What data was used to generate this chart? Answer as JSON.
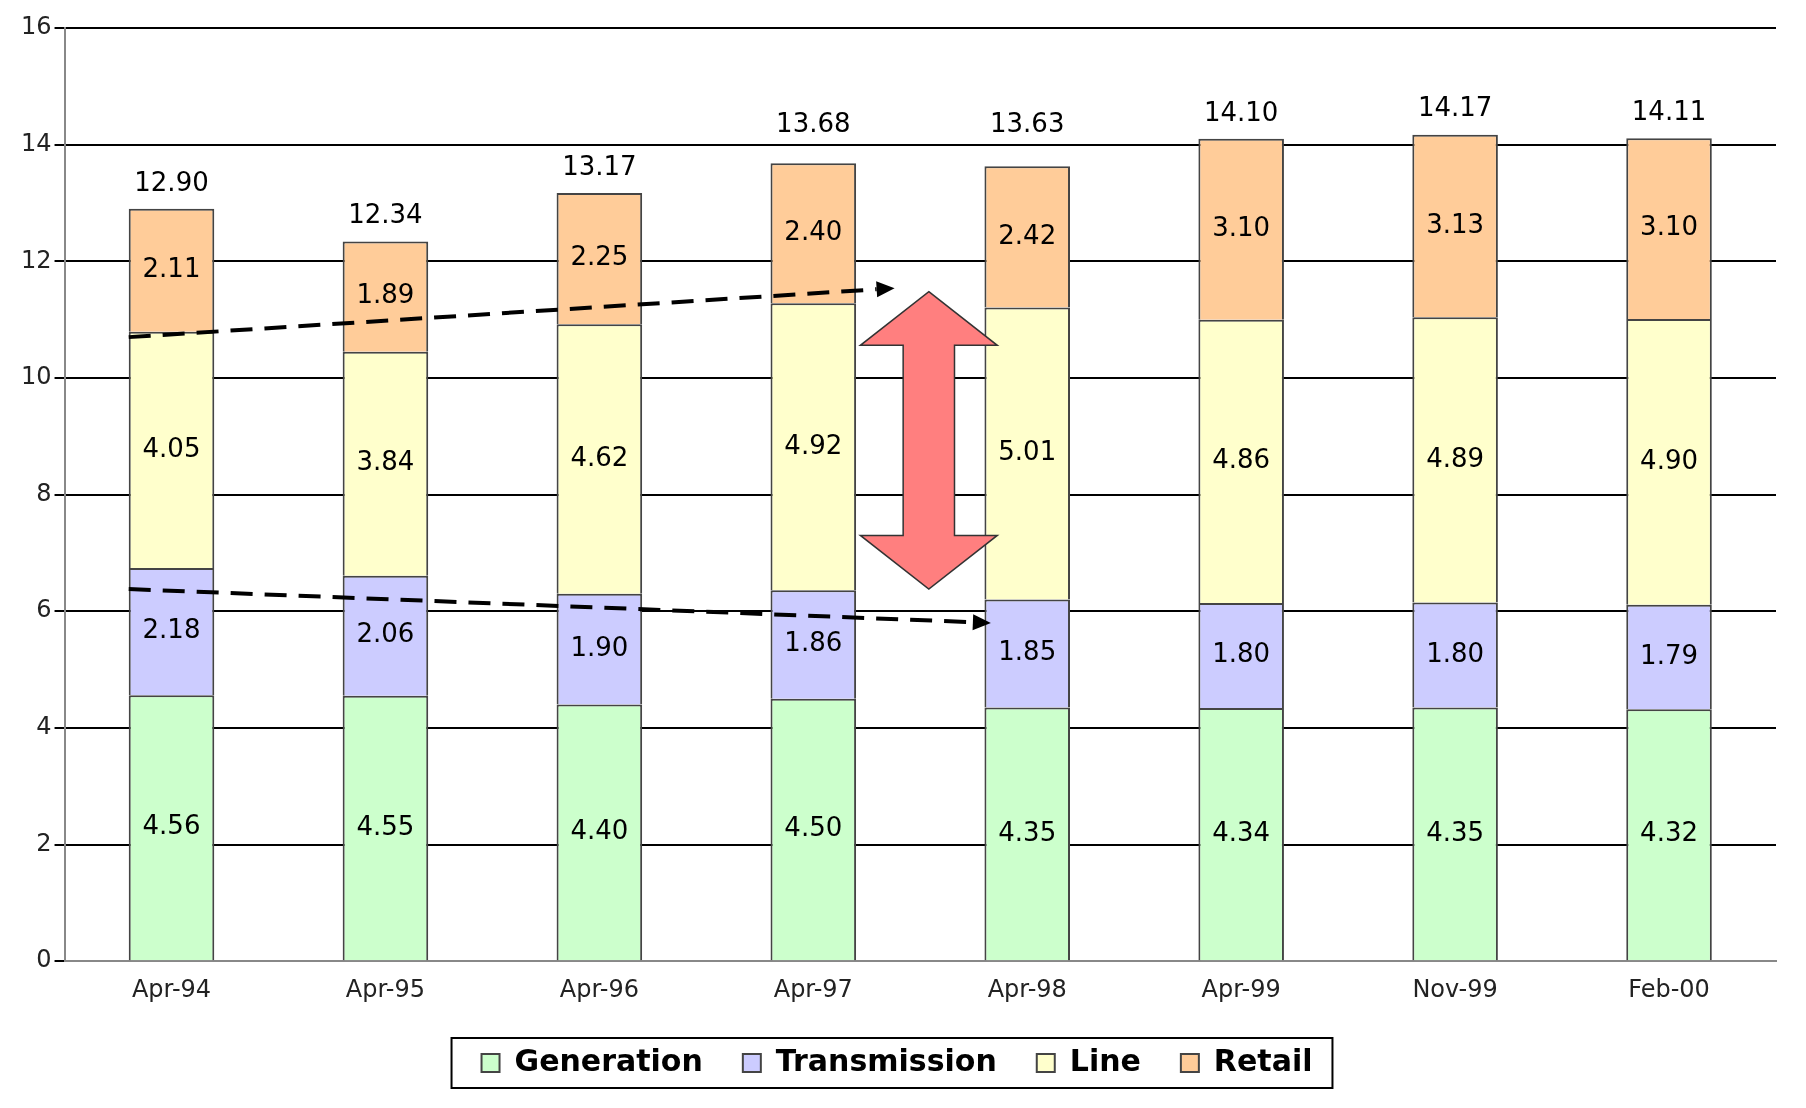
{
  "chart_data": {
    "type": "bar",
    "stacked": true,
    "categories": [
      "Apr-94",
      "Apr-95",
      "Apr-96",
      "Apr-97",
      "Apr-98",
      "Apr-99",
      "Nov-99",
      "Feb-00"
    ],
    "series": [
      {
        "name": "Generation",
        "color": "#ccffcc",
        "values": [
          4.56,
          4.55,
          4.4,
          4.5,
          4.35,
          4.34,
          4.35,
          4.32
        ],
        "value_labels": [
          "4.56",
          "4.55",
          "4.40",
          "4.50",
          "4.35",
          "4.34",
          "4.35",
          "4.32"
        ]
      },
      {
        "name": "Transmission",
        "color": "#ccccff",
        "values": [
          2.18,
          2.06,
          1.9,
          1.86,
          1.85,
          1.8,
          1.8,
          1.79
        ],
        "value_labels": [
          "2.18",
          "2.06",
          "1.90",
          "1.86",
          "1.85",
          "1.80",
          "1.80",
          "1.79"
        ]
      },
      {
        "name": "Line",
        "color": "#ffffcc",
        "values": [
          4.05,
          3.84,
          4.62,
          4.92,
          5.01,
          4.86,
          4.89,
          4.9
        ],
        "value_labels": [
          "4.05",
          "3.84",
          "4.62",
          "4.92",
          "5.01",
          "4.86",
          "4.89",
          "4.90"
        ]
      },
      {
        "name": "Retail",
        "color": "#ffcc99",
        "values": [
          2.11,
          1.89,
          2.25,
          2.4,
          2.42,
          3.1,
          3.13,
          3.1
        ],
        "value_labels": [
          "2.11",
          "1.89",
          "2.25",
          "2.40",
          "2.42",
          "3.10",
          "3.13",
          "3.10"
        ]
      }
    ],
    "totals": [
      "12.90",
      "12.34",
      "13.17",
      "13.68",
      "13.63",
      "14.10",
      "14.17",
      "14.11"
    ],
    "ylim": [
      0,
      16
    ],
    "yticks": [
      0,
      2,
      4,
      6,
      8,
      10,
      12,
      14,
      16
    ],
    "grid": "y",
    "legend": "bottom"
  }
}
